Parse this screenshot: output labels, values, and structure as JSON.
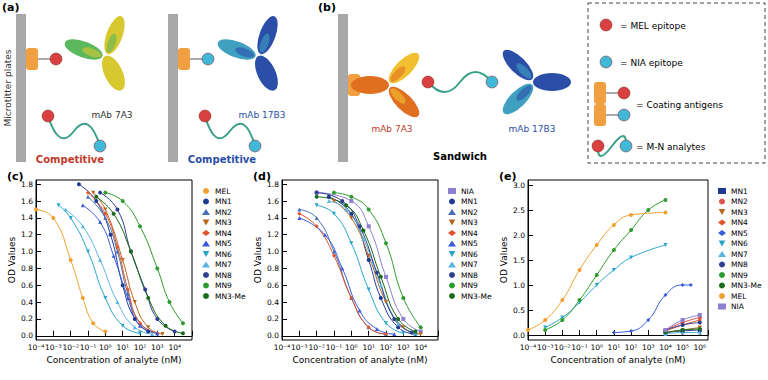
{
  "diagram": {
    "panels": [
      {
        "label": "(a)",
        "plate": "Microtitter plates",
        "assays": [
          {
            "antibody": "mAb 7A3",
            "assay": "Competitive"
          },
          {
            "antibody": "mAb 17B3",
            "assay": "Competitive"
          }
        ]
      },
      {
        "label": "(b)",
        "antibodies": [
          "mAb 7A3",
          "mAb 17B3"
        ],
        "assay": "Sandwich"
      }
    ],
    "key": [
      {
        "sign": "=",
        "label": "MEL epitope"
      },
      {
        "sign": "=",
        "label": "NIA epitope"
      },
      {
        "sign": "=",
        "label": "Coating antigens"
      },
      {
        "sign": "=",
        "label": "M-N analytes"
      }
    ]
  },
  "chart_data": [
    {
      "type": "line",
      "title": "(c)",
      "x_label": "Concentration of analyte (nM)",
      "y_label": "OD Values",
      "log": "x",
      "grid": false,
      "legend": "right",
      "xlim": [
        0.0001,
        100000
      ],
      "xticks": [
        {
          "value": 0.0001,
          "label": "10⁻⁴"
        },
        {
          "value": 0.001,
          "label": "10⁻³"
        },
        {
          "value": 0.01,
          "label": "10⁻²"
        },
        {
          "value": 0.1,
          "label": "10⁻¹"
        },
        {
          "value": 1,
          "label": "10⁰"
        },
        {
          "value": 10,
          "label": "10¹"
        },
        {
          "value": 100,
          "label": "10²"
        },
        {
          "value": 1000,
          "label": "10³"
        },
        {
          "value": 10000,
          "label": "10⁴"
        }
      ],
      "ylim": [
        -0.05,
        1.85
      ],
      "yticks": [
        {
          "value": 0,
          "label": "0.0"
        },
        0.2,
        0.4,
        0.6,
        0.8,
        {
          "value": 1,
          "label": "1.0"
        },
        1.2,
        1.4,
        1.6,
        1.8
      ],
      "series": [
        {
          "name": "MEL",
          "color": "#f0a030",
          "marker": "circle",
          "x": [
            0.0001,
            0.001,
            0.01,
            0.05,
            0.2,
            1
          ],
          "values": [
            1.5,
            1.4,
            0.9,
            0.45,
            0.15,
            0.05
          ]
        },
        {
          "name": "MN1",
          "color": "#1f3a93",
          "marker": "circle",
          "x": [
            0.03,
            0.3,
            2,
            10,
            50,
            300
          ],
          "values": [
            1.8,
            1.6,
            1.2,
            0.6,
            0.2,
            0.05
          ]
        },
        {
          "name": "MN2",
          "color": "#4a6fb5",
          "marker": "triangle",
          "x": [
            0.1,
            1,
            5,
            20,
            100,
            1000
          ],
          "values": [
            1.65,
            1.4,
            1.0,
            0.5,
            0.15,
            0.03
          ]
        },
        {
          "name": "MN3",
          "color": "#b5651d",
          "marker": "inverted_triangle",
          "x": [
            0.2,
            1,
            10,
            50,
            300,
            2000
          ],
          "values": [
            1.7,
            1.5,
            0.9,
            0.4,
            0.1,
            0.02
          ]
        },
        {
          "name": "MN4",
          "color": "#e0522a",
          "marker": "diamond",
          "x": [
            0.1,
            1,
            5,
            20,
            100,
            1000
          ],
          "values": [
            1.7,
            1.45,
            1.05,
            0.55,
            0.15,
            0.03
          ]
        },
        {
          "name": "MN5",
          "color": "#3b5bdb",
          "marker": "triangle",
          "x": [
            0.05,
            0.5,
            3,
            20,
            100,
            1000
          ],
          "values": [
            1.55,
            1.35,
            0.95,
            0.45,
            0.12,
            0.03
          ]
        },
        {
          "name": "MN6",
          "color": "#2aa5c9",
          "marker": "inverted_triangle",
          "x": [
            0.002,
            0.01,
            0.1,
            1,
            10,
            100
          ],
          "values": [
            1.55,
            1.4,
            1.0,
            0.45,
            0.12,
            0.03
          ]
        },
        {
          "name": "MN7",
          "color": "#5ab4e0",
          "marker": "triangle",
          "x": [
            0.005,
            0.05,
            0.5,
            5,
            50,
            500
          ],
          "values": [
            1.5,
            1.3,
            0.9,
            0.4,
            0.1,
            0.02
          ]
        },
        {
          "name": "MN8",
          "color": "#2f3f8f",
          "marker": "circle",
          "x": [
            0.5,
            5,
            30,
            200,
            1000,
            10000
          ],
          "values": [
            1.7,
            1.5,
            1.0,
            0.55,
            0.2,
            0.05
          ]
        },
        {
          "name": "MN9",
          "color": "#2e9b2e",
          "marker": "circle",
          "x": [
            1,
            10,
            100,
            1000,
            5000,
            30000
          ],
          "values": [
            1.7,
            1.6,
            1.3,
            0.8,
            0.4,
            0.15
          ]
        },
        {
          "name": "MN3-Me",
          "color": "#1a6b1a",
          "marker": "circle",
          "x": [
            0.3,
            3,
            30,
            300,
            3000,
            30000
          ],
          "values": [
            1.65,
            1.45,
            1.0,
            0.45,
            0.12,
            0.03
          ]
        }
      ]
    },
    {
      "type": "line",
      "title": "(d)",
      "x_label": "Concentration of analyte (nM)",
      "y_label": "OD Values",
      "log": "x",
      "grid": false,
      "legend": "right",
      "xlim": [
        0.0001,
        100000
      ],
      "xticks": [
        {
          "value": 0.0001,
          "label": "10⁻⁴"
        },
        {
          "value": 0.001,
          "label": "10⁻³"
        },
        {
          "value": 0.01,
          "label": "10⁻²"
        },
        {
          "value": 0.1,
          "label": "10⁻¹"
        },
        {
          "value": 1,
          "label": "10⁰"
        },
        {
          "value": 10,
          "label": "10¹"
        },
        {
          "value": 100,
          "label": "10²"
        },
        {
          "value": 1000,
          "label": "10³"
        },
        {
          "value": 10000,
          "label": "10⁴"
        }
      ],
      "ylim": [
        -0.05,
        1.85
      ],
      "yticks": [
        {
          "value": 0,
          "label": "0.0"
        },
        0.2,
        0.4,
        0.6,
        0.8,
        {
          "value": 1,
          "label": "1.0"
        },
        1.2,
        1.4,
        1.6,
        1.8
      ],
      "series": [
        {
          "name": "NIA",
          "color": "#8a7fd0",
          "marker": "square",
          "x": [
            0.01,
            1,
            10,
            100,
            1000,
            10000
          ],
          "values": [
            1.7,
            1.6,
            1.3,
            0.7,
            0.2,
            0.05
          ]
        },
        {
          "name": "MN1",
          "color": "#1f3a93",
          "marker": "circle",
          "x": [
            0.05,
            1,
            10,
            50,
            500,
            5000
          ],
          "values": [
            1.65,
            1.45,
            0.9,
            0.45,
            0.1,
            0.02
          ]
        },
        {
          "name": "MN2",
          "color": "#4a6fb5",
          "marker": "triangle",
          "x": [
            0.001,
            0.01,
            0.1,
            1,
            10,
            100
          ],
          "values": [
            1.5,
            1.4,
            1.0,
            0.45,
            0.1,
            0.02
          ]
        },
        {
          "name": "MN3",
          "color": "#b5651d",
          "marker": "inverted_triangle",
          "x": [
            0.1,
            1,
            10,
            100,
            1000,
            10000
          ],
          "values": [
            1.6,
            1.4,
            0.95,
            0.4,
            0.1,
            0.02
          ]
        },
        {
          "name": "MN4",
          "color": "#e0522a",
          "marker": "diamond",
          "x": [
            0.001,
            0.01,
            0.1,
            1,
            10,
            100
          ],
          "values": [
            1.45,
            1.3,
            0.95,
            0.45,
            0.1,
            0.02
          ]
        },
        {
          "name": "MN5",
          "color": "#3b5bdb",
          "marker": "triangle",
          "x": [
            0.001,
            0.03,
            0.3,
            3,
            30,
            300
          ],
          "values": [
            1.4,
            1.2,
            0.8,
            0.3,
            0.08,
            0.02
          ]
        },
        {
          "name": "MN6",
          "color": "#2aa5c9",
          "marker": "inverted_triangle",
          "x": [
            0.01,
            0.1,
            1,
            10,
            100,
            1000
          ],
          "values": [
            1.55,
            1.45,
            1.1,
            0.55,
            0.15,
            0.03
          ]
        },
        {
          "name": "MN7",
          "color": "#5ab4e0",
          "marker": "triangle",
          "x": [
            0.05,
            0.5,
            5,
            50,
            500,
            5000
          ],
          "values": [
            1.6,
            1.5,
            1.15,
            0.6,
            0.15,
            0.03
          ]
        },
        {
          "name": "MN8",
          "color": "#2f3f8f",
          "marker": "circle",
          "x": [
            0.01,
            0.3,
            3,
            30,
            300,
            3000
          ],
          "values": [
            1.7,
            1.6,
            1.3,
            0.75,
            0.2,
            0.04
          ]
        },
        {
          "name": "MN9",
          "color": "#2e9b2e",
          "marker": "circle",
          "x": [
            0.1,
            1,
            10,
            100,
            1000,
            10000
          ],
          "values": [
            1.7,
            1.65,
            1.5,
            1.1,
            0.45,
            0.1
          ]
        },
        {
          "name": "MN3-Me",
          "color": "#1a6b1a",
          "marker": "circle",
          "x": [
            0.01,
            0.5,
            5,
            50,
            500,
            5000
          ],
          "values": [
            1.65,
            1.55,
            1.25,
            0.7,
            0.2,
            0.05
          ]
        }
      ]
    },
    {
      "type": "line",
      "title": "(e)",
      "x_label": "Concentration of analyte (nM)",
      "y_label": "OD Values",
      "log": "x",
      "grid": false,
      "legend": "right",
      "xlim": [
        0.0001,
        3000000
      ],
      "xticks": [
        {
          "value": 0.0001,
          "label": "10⁻⁴"
        },
        {
          "value": 0.001,
          "label": "10⁻³"
        },
        {
          "value": 0.01,
          "label": "10⁻²"
        },
        {
          "value": 0.1,
          "label": "10⁻¹"
        },
        {
          "value": 1,
          "label": "10⁰"
        },
        {
          "value": 10,
          "label": "10¹"
        },
        {
          "value": 100,
          "label": "10²"
        },
        {
          "value": 1000,
          "label": "10³"
        },
        {
          "value": 10000,
          "label": "10⁴"
        },
        {
          "value": 100000,
          "label": "10⁵"
        },
        {
          "value": 1000000,
          "label": "10⁶"
        }
      ],
      "ylim": [
        -0.1,
        3.1
      ],
      "yticks": [
        {
          "value": 0,
          "label": "0.0"
        },
        0.5,
        {
          "value": 1,
          "label": "1.0"
        },
        1.5,
        {
          "value": 2,
          "label": "2.0"
        },
        2.5,
        {
          "value": 3,
          "label": "3.0"
        }
      ],
      "series": [
        {
          "name": "MN1",
          "color": "#1f3a93",
          "marker": "square",
          "x": [
            10000,
            100000,
            1000000
          ],
          "values": [
            0.05,
            0.08,
            0.1
          ]
        },
        {
          "name": "MN2",
          "color": "#e05050",
          "marker": "circle",
          "x": [
            10000,
            100000,
            1000000
          ],
          "values": [
            0.1,
            0.25,
            0.35
          ]
        },
        {
          "name": "MN3",
          "color": "#b5651d",
          "marker": "inverted_triangle",
          "x": [
            10000,
            100000,
            1000000
          ],
          "values": [
            0.05,
            0.1,
            0.15
          ]
        },
        {
          "name": "MN4",
          "color": "#e0522a",
          "marker": "diamond",
          "x": [
            10000,
            100000,
            1000000
          ],
          "values": [
            0.08,
            0.2,
            0.3
          ]
        },
        {
          "name": "MN5",
          "color": "#3b5bdb",
          "marker": "diamond",
          "x": [
            10,
            100,
            1000,
            10000,
            100000,
            300000
          ],
          "values": [
            0.05,
            0.08,
            0.3,
            0.8,
            1.0,
            1.0
          ]
        },
        {
          "name": "MN6",
          "color": "#2aa5c9",
          "marker": "inverted_triangle",
          "x": [
            0.001,
            0.01,
            0.1,
            1,
            10,
            100,
            10000
          ],
          "values": [
            0.15,
            0.35,
            0.65,
            1.0,
            1.3,
            1.55,
            1.8
          ]
        },
        {
          "name": "MN7",
          "color": "#5ab4e0",
          "marker": "triangle",
          "x": [
            10000,
            100000,
            1000000
          ],
          "values": [
            0.02,
            0.05,
            0.05
          ]
        },
        {
          "name": "MN8",
          "color": "#2f3f8f",
          "marker": "circle",
          "x": [
            10000,
            100000,
            1000000
          ],
          "values": [
            0.1,
            0.2,
            0.25
          ]
        },
        {
          "name": "MN9",
          "color": "#2e9b2e",
          "marker": "circle",
          "x": [
            0.001,
            0.01,
            0.1,
            1,
            10,
            100,
            1000,
            10000
          ],
          "values": [
            0.1,
            0.3,
            0.7,
            1.2,
            1.7,
            2.1,
            2.5,
            2.7
          ]
        },
        {
          "name": "MN3-Me",
          "color": "#1a6b1a",
          "marker": "circle",
          "x": [
            10000,
            100000,
            1000000
          ],
          "values": [
            0.05,
            0.1,
            0.12
          ]
        },
        {
          "name": "MEL",
          "color": "#f0a030",
          "marker": "circle",
          "x": [
            0.0001,
            0.001,
            0.01,
            0.1,
            1,
            10,
            100,
            10000
          ],
          "values": [
            0.1,
            0.3,
            0.7,
            1.3,
            1.8,
            2.2,
            2.4,
            2.45
          ]
        },
        {
          "name": "NIA",
          "color": "#8a7fd0",
          "marker": "square",
          "x": [
            10000,
            100000,
            1000000
          ],
          "values": [
            0.1,
            0.3,
            0.4
          ]
        }
      ]
    }
  ]
}
